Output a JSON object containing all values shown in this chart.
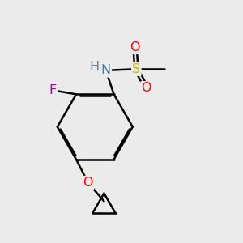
{
  "background_color": "#ebebeb",
  "bond_color": "#000000",
  "bond_width": 1.8,
  "dbo": 0.055,
  "atom_colors": {
    "N": "#4a7fa5",
    "O": "#ff0000",
    "F": "#aa00aa",
    "S": "#bbbb00",
    "H": "#708090",
    "C": "#000000"
  },
  "font_size": 11.5,
  "fig_size": [
    3.0,
    3.0
  ],
  "dpi": 100
}
